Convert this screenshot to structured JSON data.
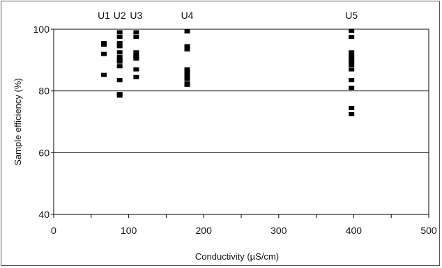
{
  "chart_data": {
    "type": "scatter",
    "xlabel": "Conductivity (µS/cm)",
    "ylabel": "Sample efficiency (%)",
    "xlim": [
      0,
      500
    ],
    "ylim": [
      40,
      100
    ],
    "x_ticks": [
      0,
      100,
      200,
      300,
      400,
      500
    ],
    "y_ticks": [
      40,
      60,
      80,
      100
    ],
    "x_minor_ticks": [
      50,
      150,
      250,
      350,
      450
    ],
    "horizontal_gridlines": [
      60,
      80,
      100
    ],
    "marker": "square",
    "marker_color": "#000000",
    "annotations": [
      {
        "text": "U1",
        "x": 67
      },
      {
        "text": "U2",
        "x": 88
      },
      {
        "text": "U3",
        "x": 110
      },
      {
        "text": "U4",
        "x": 178
      },
      {
        "text": "U5",
        "x": 397
      }
    ],
    "series": [
      {
        "x": [
          67,
          67,
          67,
          67
        ],
        "y": [
          95.5,
          95.0,
          92.0,
          85.2
        ]
      },
      {
        "x": [
          88,
          88,
          88,
          88,
          88,
          88,
          88,
          88,
          88,
          88,
          88,
          88
        ],
        "y": [
          99.0,
          97.5,
          95.5,
          94.5,
          92.5,
          91.0,
          90.0,
          89.5,
          88.0,
          83.5,
          79.0,
          78.5
        ],
        "name": ""
      },
      {
        "x": [
          110,
          110,
          110,
          110,
          110,
          110,
          110,
          110
        ],
        "y": [
          99.0,
          97.5,
          92.5,
          91.5,
          91.0,
          90.5,
          87.0,
          84.5
        ]
      },
      {
        "x": [
          178,
          178,
          178,
          178,
          178,
          178,
          178,
          178,
          178,
          178
        ],
        "y": [
          99.3,
          94.5,
          93.5,
          87.0,
          86.0,
          85.0,
          84.5,
          84.0,
          82.5,
          82.0
        ]
      },
      {
        "x": [
          397,
          397,
          397,
          397,
          397,
          397,
          397,
          397,
          397,
          397,
          397,
          397
        ],
        "y": [
          99.5,
          97.5,
          92.5,
          91.5,
          90.5,
          89.5,
          88.5,
          87.0,
          83.5,
          81.0,
          74.5,
          72.5
        ]
      }
    ]
  }
}
